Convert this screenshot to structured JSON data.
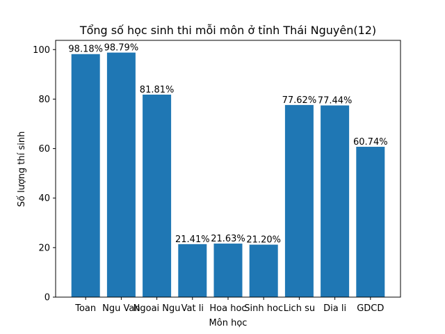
{
  "chart_data": {
    "type": "bar",
    "title": "Tổng số học sinh thi mỗi môn ở tỉnh Thái Nguyên(12)",
    "xlabel": "Môn học",
    "ylabel": "Số lượng thí sinh",
    "categories": [
      "Toan",
      "Ngu Van",
      "Ngoai Ngu",
      "Vat li",
      "Hoa hoc",
      "Sinh hoc",
      "Lich su",
      "Dia li",
      "GDCD"
    ],
    "values": [
      98.18,
      98.79,
      81.81,
      21.41,
      21.63,
      21.2,
      77.62,
      77.44,
      60.74
    ],
    "data_labels": [
      "98.18%",
      "98.79%",
      "81.81%",
      "21.41%",
      "21.63%",
      "21.20%",
      "77.62%",
      "77.44%",
      "60.74%"
    ],
    "ylim": [
      0,
      103.73
    ],
    "yticks": [
      0,
      20,
      40,
      60,
      80,
      100
    ],
    "ytick_labels": [
      "0",
      "20",
      "40",
      "60",
      "80",
      "100"
    ],
    "grid": false,
    "legend": "none",
    "colors": {
      "bar": "#1f77b4",
      "axis": "#000000",
      "background": "#ffffff"
    }
  }
}
